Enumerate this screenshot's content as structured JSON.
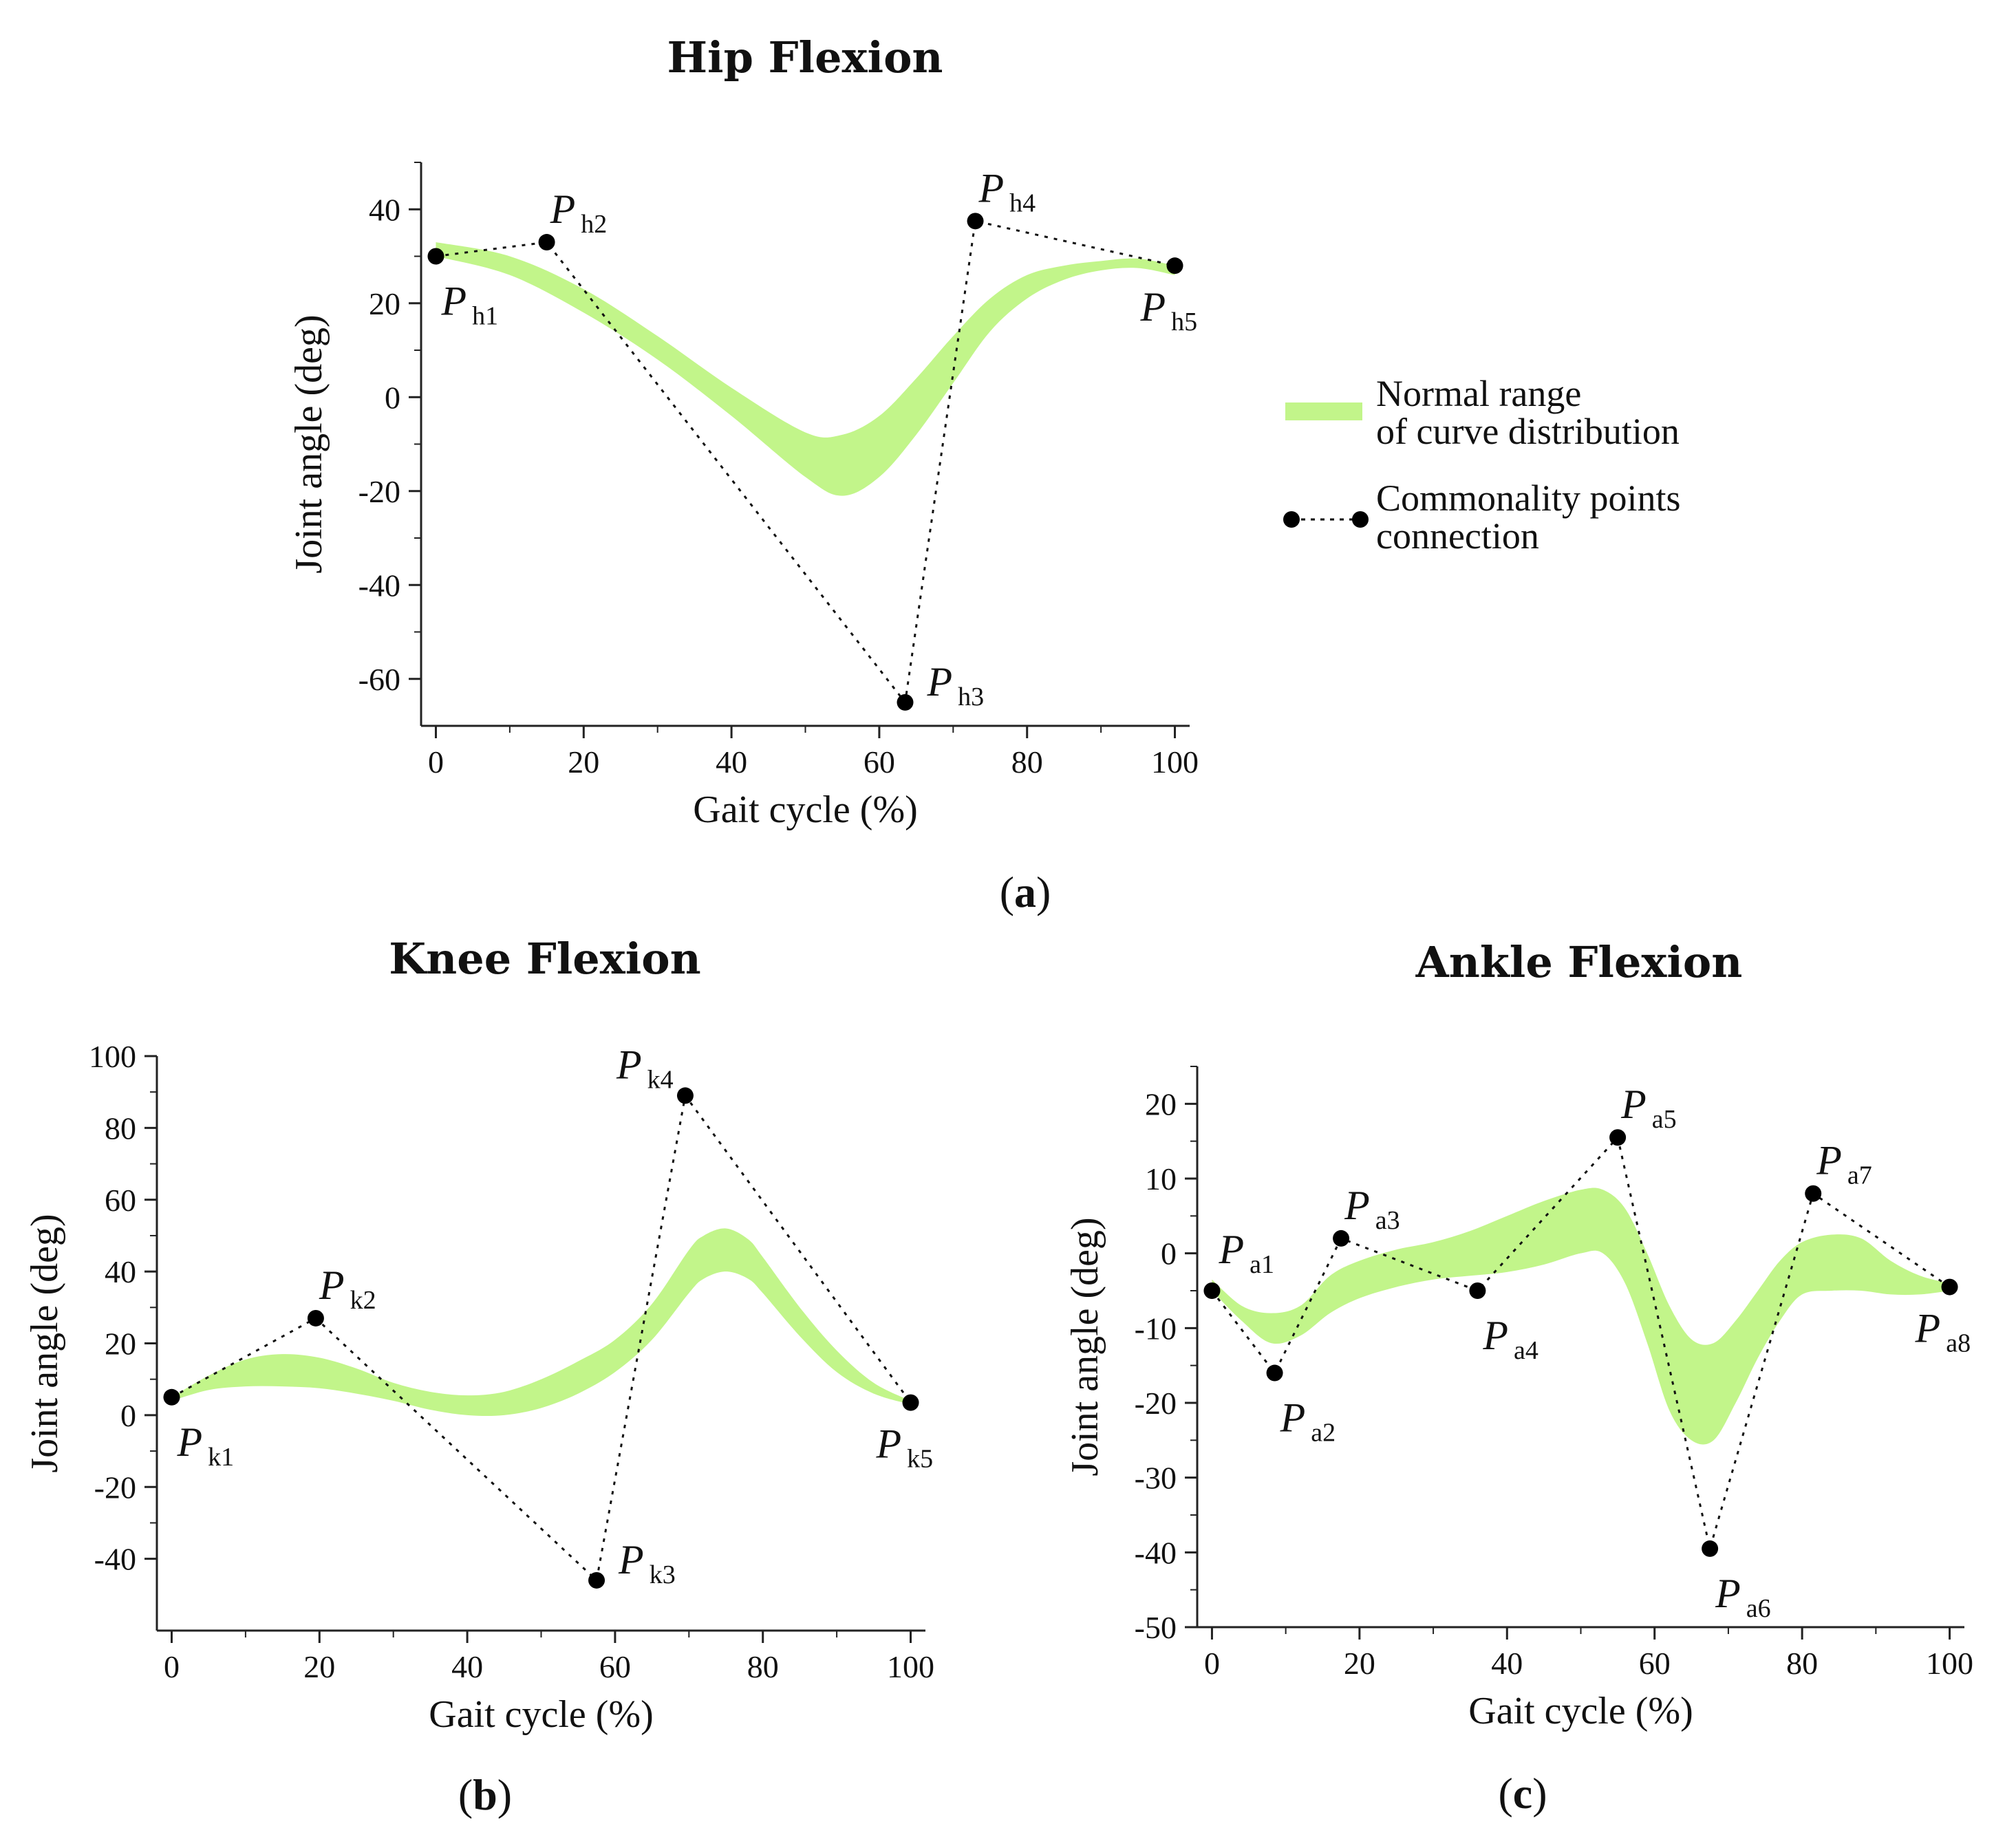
{
  "legend": {
    "band_line1": "Normal range",
    "band_line2": "of curve distribution",
    "points_line1": "Commonality points",
    "points_line2": "connection"
  },
  "colors": {
    "band": "#c2f58a",
    "points": "#000000",
    "axis": "#222222"
  },
  "chart_data": [
    {
      "id": "hip",
      "type": "area",
      "tag_open": "(",
      "tag": "a",
      "tag_close": ")",
      "title": "Hip Flexion",
      "xlabel": "Gait cycle (%)",
      "ylabel": "Joint angle (deg)",
      "xlim": [
        -2,
        102
      ],
      "ylim": [
        -70,
        50
      ],
      "xticks": [
        0,
        20,
        40,
        60,
        80,
        100
      ],
      "xtick_labels": [
        "0",
        "20",
        "40",
        "60",
        "80",
        "100"
      ],
      "yticks": [
        -60,
        -40,
        -20,
        0,
        20,
        40
      ],
      "ytick_labels": [
        "-60",
        "-40",
        "-20",
        "0",
        "20",
        "40"
      ],
      "band": {
        "x": [
          0,
          10,
          20,
          30,
          40,
          50,
          55,
          60,
          65,
          70,
          75,
          80,
          85,
          90,
          95,
          100
        ],
        "upper": [
          33,
          30,
          23,
          13,
          2,
          -7.5,
          -8,
          -4,
          4,
          13,
          21,
          26,
          28,
          29,
          29.5,
          28
        ],
        "lower": [
          30,
          26,
          18,
          8,
          -4,
          -17,
          -21,
          -17,
          -8,
          3,
          14,
          21,
          25,
          27,
          27.5,
          26
        ]
      },
      "points": [
        {
          "sub": "h1",
          "x": 0,
          "y": 30,
          "label_pos": "below"
        },
        {
          "sub": "h2",
          "x": 15,
          "y": 33,
          "label_pos": "above"
        },
        {
          "sub": "h3",
          "x": 63.5,
          "y": -65,
          "label_pos": "right"
        },
        {
          "sub": "h4",
          "x": 73,
          "y": 37.5,
          "label_pos": "above"
        },
        {
          "sub": "h5",
          "x": 100,
          "y": 28,
          "label_pos": "below-left"
        }
      ]
    },
    {
      "id": "knee",
      "type": "area",
      "tag_open": "(",
      "tag": "b",
      "tag_close": ")",
      "title": "Knee Flexion",
      "xlabel": "Gait cycle (%)",
      "ylabel": "Joint angle (deg)",
      "xlim": [
        -2,
        102
      ],
      "ylim": [
        -60,
        100
      ],
      "xticks": [
        0,
        20,
        40,
        60,
        80,
        100
      ],
      "xtick_labels": [
        "0",
        "20",
        "40",
        "60",
        "80",
        "100"
      ],
      "yticks": [
        -40,
        -20,
        0,
        20,
        40,
        60,
        80,
        100
      ],
      "ytick_labels": [
        "-40",
        "-20",
        "0",
        "20",
        "40",
        "60",
        "80",
        "100"
      ],
      "band": {
        "x": [
          0,
          5,
          10,
          15,
          20,
          25,
          30,
          35,
          40,
          45,
          50,
          55,
          60,
          65,
          70,
          72,
          75,
          78,
          80,
          85,
          90,
          95,
          100
        ],
        "upper": [
          5,
          11,
          15.5,
          17,
          16,
          13,
          9,
          6.5,
          5.5,
          6.5,
          10,
          15,
          21,
          31,
          46,
          50,
          52,
          49,
          44,
          30,
          18,
          9,
          4
        ],
        "lower": [
          4,
          7,
          8,
          8,
          7.5,
          6,
          4,
          1.5,
          0,
          0,
          2,
          6,
          12,
          21,
          34,
          38,
          40,
          38,
          34,
          22,
          12,
          6,
          3
        ]
      },
      "points": [
        {
          "sub": "k1",
          "x": 0,
          "y": 5,
          "label_pos": "below"
        },
        {
          "sub": "k2",
          "x": 19.5,
          "y": 27,
          "label_pos": "above"
        },
        {
          "sub": "k3",
          "x": 57.5,
          "y": -46,
          "label_pos": "right"
        },
        {
          "sub": "k4",
          "x": 69.5,
          "y": 89,
          "label_pos": "above-left"
        },
        {
          "sub": "k5",
          "x": 100,
          "y": 3.5,
          "label_pos": "below-left"
        }
      ]
    },
    {
      "id": "ankle",
      "type": "area",
      "tag_open": "(",
      "tag": "c",
      "tag_close": ")",
      "title": "Ankle Flexion",
      "xlabel": "Gait cycle (%)",
      "ylabel": "Joint angle (deg)",
      "xlim": [
        -2,
        102
      ],
      "ylim": [
        -50,
        25
      ],
      "xticks": [
        0,
        20,
        40,
        60,
        80,
        100
      ],
      "xtick_labels": [
        "0",
        "20",
        "40",
        "60",
        "80",
        "100"
      ],
      "yticks": [
        -50,
        -40,
        -30,
        -20,
        -10,
        0,
        10,
        20
      ],
      "ytick_labels": [
        "-50",
        "-40",
        "-30",
        "-20",
        "-10",
        "0",
        "10",
        "20"
      ],
      "band": {
        "x": [
          0,
          4,
          8,
          12,
          16,
          20,
          25,
          30,
          35,
          40,
          45,
          50,
          53,
          56,
          59,
          62,
          65,
          68,
          71,
          74,
          77,
          80,
          84,
          88,
          92,
          96,
          100
        ],
        "upper": [
          -3.5,
          -7,
          -8,
          -7,
          -3,
          -1,
          0.5,
          1.5,
          3,
          5,
          7,
          8.5,
          8.5,
          6,
          0,
          -7,
          -11.5,
          -12,
          -9,
          -5,
          -1,
          1.5,
          2.5,
          2,
          -1,
          -3,
          -4
        ],
        "lower": [
          -5,
          -9,
          -12,
          -11,
          -8,
          -6,
          -4.5,
          -3.5,
          -3,
          -2.5,
          -1.5,
          0,
          0,
          -4,
          -12,
          -21,
          -25,
          -25,
          -20,
          -14,
          -9,
          -5.5,
          -5,
          -5,
          -5.5,
          -5.5,
          -5
        ]
      },
      "points": [
        {
          "sub": "a1",
          "x": 0,
          "y": -5,
          "label_pos": "above-right"
        },
        {
          "sub": "a2",
          "x": 8.5,
          "y": -16,
          "label_pos": "below"
        },
        {
          "sub": "a3",
          "x": 17.5,
          "y": 2,
          "label_pos": "above"
        },
        {
          "sub": "a4",
          "x": 36,
          "y": -5,
          "label_pos": "below"
        },
        {
          "sub": "a5",
          "x": 55,
          "y": 15.5,
          "label_pos": "above"
        },
        {
          "sub": "a6",
          "x": 67.5,
          "y": -39.5,
          "label_pos": "below"
        },
        {
          "sub": "a7",
          "x": 81.5,
          "y": 8,
          "label_pos": "above"
        },
        {
          "sub": "a8",
          "x": 100,
          "y": -4.5,
          "label_pos": "below-left"
        }
      ]
    }
  ]
}
